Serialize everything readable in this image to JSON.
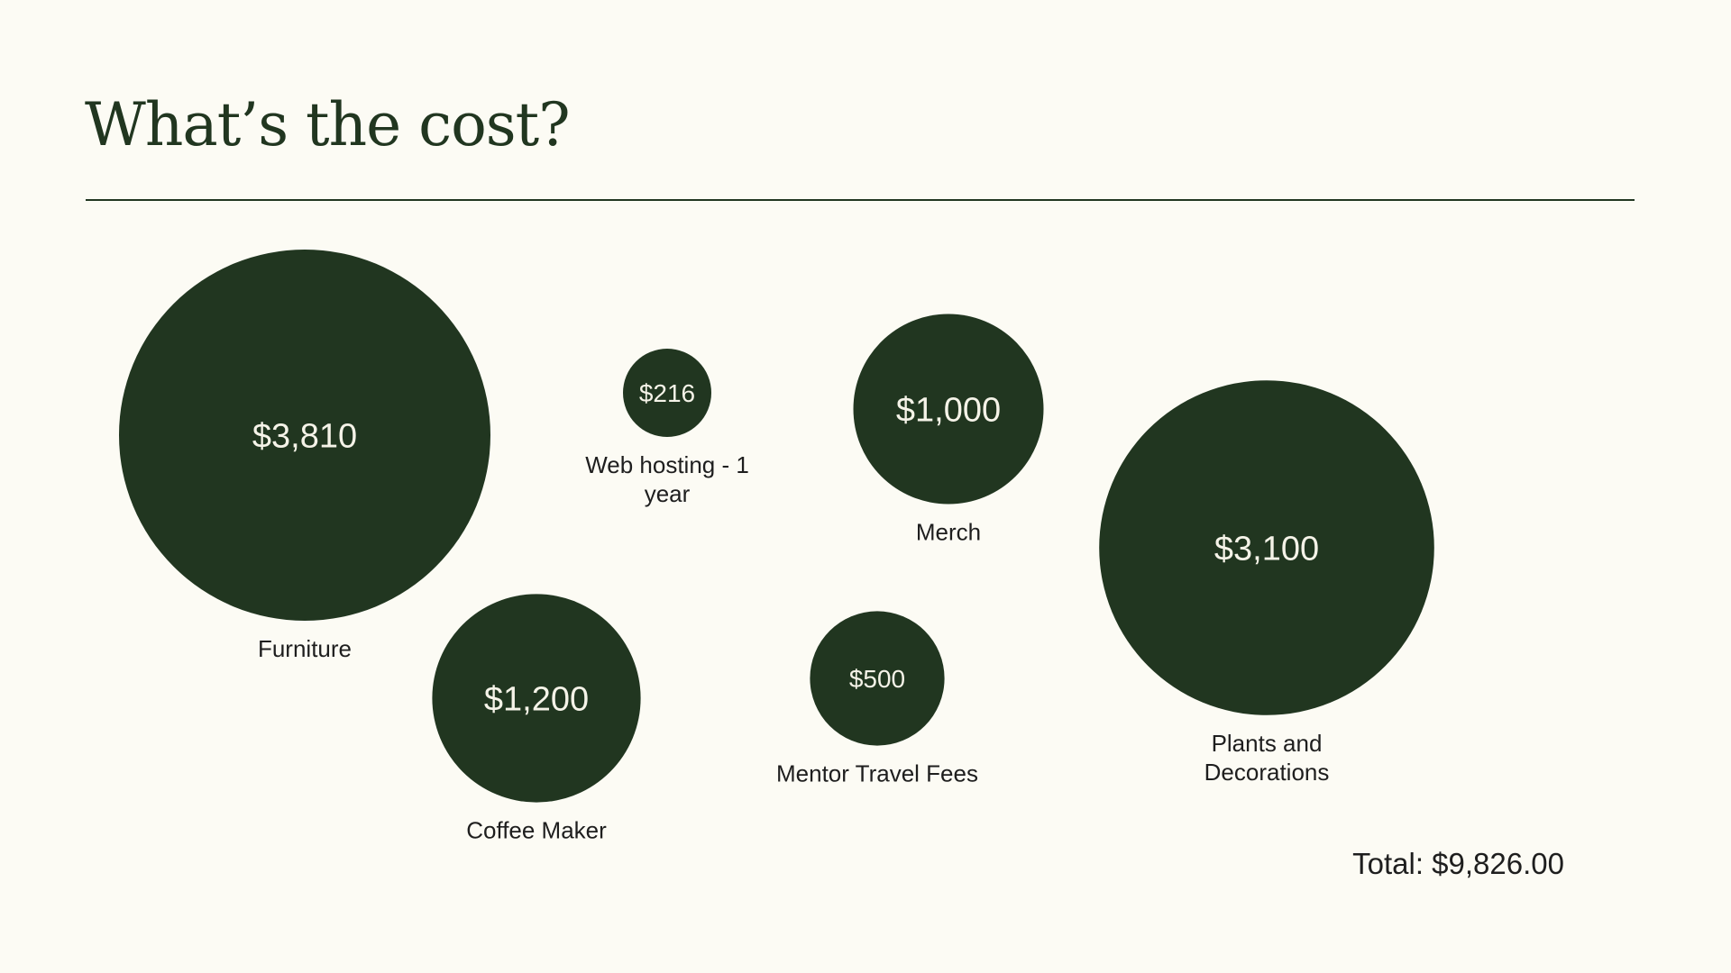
{
  "slide": {
    "title": "What’s the cost?",
    "total_label": "Total: $9,826.00"
  },
  "colors": {
    "background": "#FCFBF4",
    "bubble": "#213620",
    "bubble_text": "#F5F3E8",
    "label_text": "#1E1E1E"
  },
  "chart_data": {
    "type": "bubble",
    "title": "",
    "size_encoding": "area",
    "items": [
      {
        "category": "Furniture",
        "value": 3810,
        "value_label": "$3,810"
      },
      {
        "category": "Coffee Maker",
        "value": 1200,
        "value_label": "$1,200"
      },
      {
        "category": "Web hosting - 1 year",
        "value": 216,
        "value_label": "$216"
      },
      {
        "category": "Mentor Travel Fees",
        "value": 500,
        "value_label": "$500"
      },
      {
        "category": "Merch",
        "value": 1000,
        "value_label": "$1,000"
      },
      {
        "category": "Plants and Decorations",
        "value": 3100,
        "value_label": "$3,100"
      }
    ]
  }
}
